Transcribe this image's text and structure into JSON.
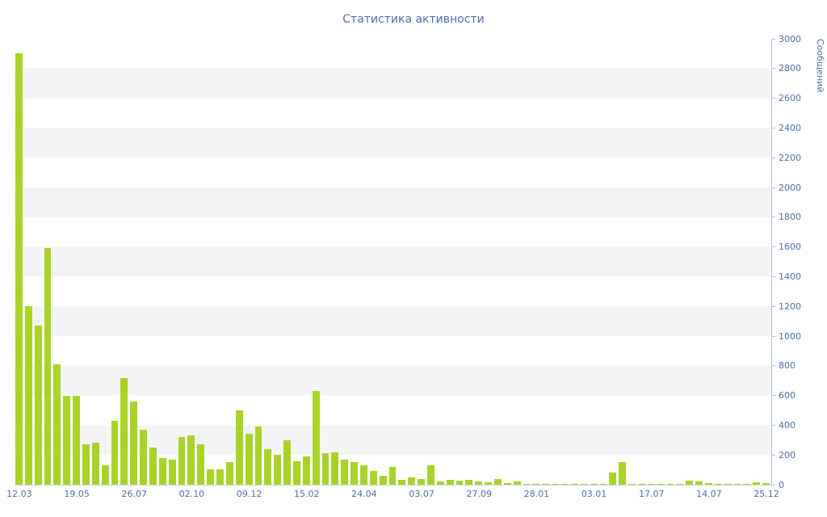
{
  "chart_data": {
    "type": "bar",
    "title": "Статистика активности",
    "ylabel": "Сообщений",
    "xlabel": "",
    "ylim": [
      0,
      3000
    ],
    "ytick_step": 200,
    "yticks": [
      0,
      200,
      400,
      600,
      800,
      1000,
      1200,
      1400,
      1600,
      1800,
      2000,
      2200,
      2400,
      2600,
      2800,
      3000
    ],
    "grid": "striped-bands",
    "legend": "none",
    "bar_color": "#a9d328",
    "stripe_color": "#f4f4f6",
    "text_color": "#4a6fa8",
    "axis_color": "#b9c0d4",
    "label_every": 6,
    "x_labels": [
      "12.03",
      "19.05",
      "26.07",
      "02.10",
      "09.12",
      "15.02",
      "24.04",
      "03.07",
      "27.09",
      "28.01",
      "03.01",
      "17.07",
      "14.07",
      "25.12"
    ],
    "values": [
      2900,
      1200,
      1070,
      1590,
      810,
      600,
      600,
      270,
      280,
      130,
      430,
      720,
      560,
      370,
      250,
      180,
      170,
      320,
      330,
      270,
      105,
      105,
      150,
      500,
      340,
      390,
      240,
      200,
      300,
      160,
      190,
      630,
      210,
      220,
      170,
      150,
      130,
      90,
      60,
      120,
      30,
      50,
      40,
      130,
      20,
      30,
      25,
      30,
      20,
      15,
      40,
      10,
      20,
      5,
      3,
      8,
      3,
      3,
      5,
      3,
      3,
      3,
      80,
      150,
      5,
      8,
      3,
      3,
      3,
      5,
      25,
      20,
      10,
      5,
      3,
      3,
      5,
      15,
      10
    ]
  }
}
